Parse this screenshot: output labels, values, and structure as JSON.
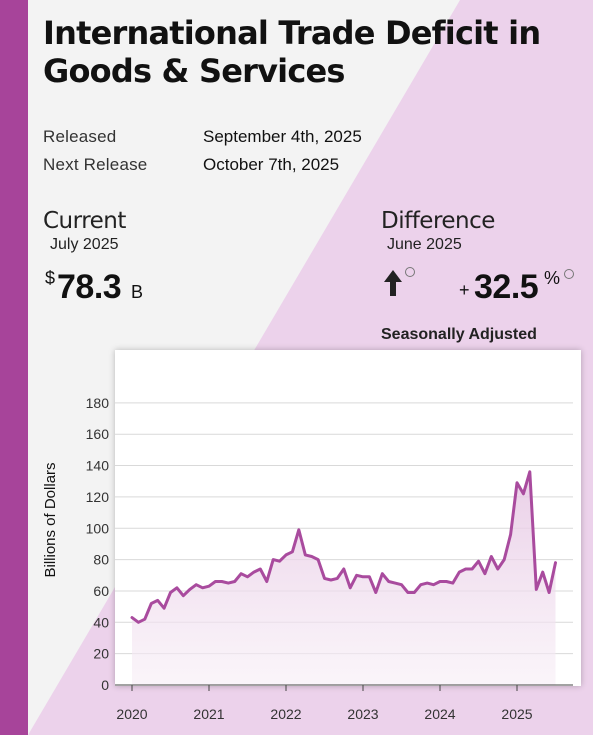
{
  "header": {
    "title": "International Trade Deficit in Goods & Services"
  },
  "release": {
    "released_label": "Released",
    "released_value": "September 4th, 2025",
    "next_label": "Next Release",
    "next_value": "October 7th, 2025"
  },
  "current": {
    "heading": "Current",
    "period": "July 2025",
    "currency": "$",
    "value": "78.3",
    "unit": "B"
  },
  "difference": {
    "heading": "Difference",
    "period": "June 2025",
    "direction_icon": "arrow-up-icon",
    "sign": "+",
    "value": "32.5",
    "unit": "%"
  },
  "adjustment_note": "Seasonally Adjusted",
  "colors": {
    "accent": "#a7449a",
    "line": "#a94b9e",
    "pink_bg": "#ecd2eb"
  },
  "chart_data": {
    "type": "area",
    "title": "",
    "xlabel": "",
    "ylabel": "Billions of Dollars",
    "ylim": [
      0,
      180
    ],
    "yticks": [
      "0",
      "20",
      "40",
      "60",
      "80",
      "100",
      "120",
      "140",
      "160",
      "180"
    ],
    "xticks": [
      "2020",
      "2021",
      "2022",
      "2023",
      "2024",
      "2025"
    ],
    "grid": true,
    "series": [
      {
        "x": [
          "2020-01",
          "2020-02",
          "2020-03",
          "2020-04",
          "2020-05",
          "2020-06",
          "2020-07",
          "2020-08",
          "2020-09",
          "2020-10",
          "2020-11",
          "2020-12",
          "2021-01",
          "2021-02",
          "2021-03",
          "2021-04",
          "2021-05",
          "2021-06",
          "2021-07",
          "2021-08",
          "2021-09",
          "2021-10",
          "2021-11",
          "2021-12",
          "2022-01",
          "2022-02",
          "2022-03",
          "2022-04",
          "2022-05",
          "2022-06",
          "2022-07",
          "2022-08",
          "2022-09",
          "2022-10",
          "2022-11",
          "2022-12",
          "2023-01",
          "2023-02",
          "2023-03",
          "2023-04",
          "2023-05",
          "2023-06",
          "2023-07",
          "2023-08",
          "2023-09",
          "2023-10",
          "2023-11",
          "2023-12",
          "2024-01",
          "2024-02",
          "2024-03",
          "2024-04",
          "2024-05",
          "2024-06",
          "2024-07",
          "2024-08",
          "2024-09",
          "2024-10",
          "2024-11",
          "2024-12",
          "2025-01",
          "2025-02",
          "2025-03",
          "2025-04",
          "2025-05",
          "2025-06",
          "2025-07"
        ],
        "values": [
          43,
          40,
          42,
          52,
          54,
          49,
          59,
          62,
          57,
          61,
          64,
          62,
          63,
          66,
          66,
          65,
          66,
          71,
          69,
          72,
          74,
          66,
          80,
          79,
          83,
          85,
          99,
          83,
          82,
          80,
          68,
          67,
          68,
          74,
          62,
          70,
          69,
          69,
          59,
          71,
          66,
          65,
          64,
          59,
          59,
          64,
          65,
          64,
          66,
          66,
          65,
          72,
          74,
          74,
          79,
          71,
          82,
          74,
          80,
          96,
          129,
          122,
          136,
          61,
          72,
          59,
          78
        ]
      }
    ]
  }
}
